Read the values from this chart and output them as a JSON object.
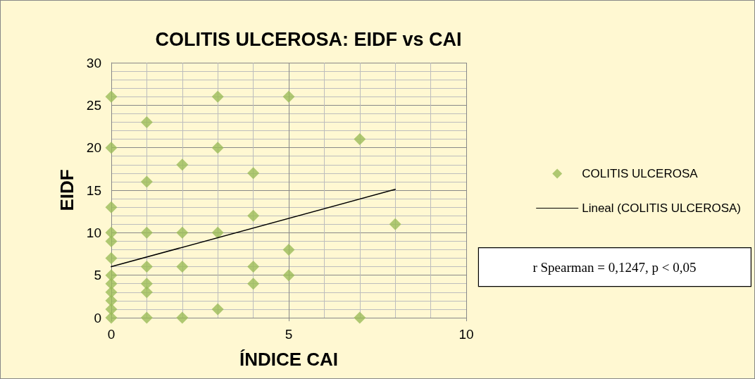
{
  "chart_data": {
    "type": "scatter",
    "title": "COLITIS ULCEROSA: EIDF vs CAI",
    "xlabel": "ÍNDICE CAI",
    "ylabel": "EIDF",
    "series": [
      {
        "name": "COLITIS ULCEROSA",
        "marker": "diamond",
        "color": "#9bbb59",
        "x": [
          0,
          0,
          0,
          0,
          0,
          0,
          0,
          0,
          0,
          0,
          0,
          0,
          1,
          1,
          1,
          1,
          1,
          1,
          1,
          2,
          2,
          2,
          2,
          3,
          3,
          3,
          3,
          4,
          4,
          4,
          4,
          5,
          5,
          5,
          7,
          7,
          8
        ],
        "values": [
          0,
          1,
          2,
          3,
          4,
          5,
          7,
          9,
          10,
          13,
          20,
          26,
          0,
          3,
          4,
          6,
          10,
          16,
          23,
          0,
          6,
          10,
          18,
          1,
          10,
          20,
          26,
          4,
          6,
          12,
          17,
          5,
          8,
          26,
          0,
          21,
          11
        ]
      },
      {
        "name": "Lineal (COLITIS ULCEROSA)",
        "type": "line",
        "marker": "none",
        "line_style": "solid",
        "color": "#000000",
        "x": [
          0,
          8
        ],
        "values": [
          6,
          15.1
        ]
      }
    ],
    "xlim": [
      0,
      10
    ],
    "xticks": [
      0,
      5,
      10
    ],
    "ylim": [
      0,
      30
    ],
    "yticks": [
      0,
      5,
      10,
      15,
      20,
      25,
      30
    ],
    "grid": true,
    "legend": "right",
    "annotations": [
      "r Spearman = 0,1247, p < 0,05"
    ]
  }
}
